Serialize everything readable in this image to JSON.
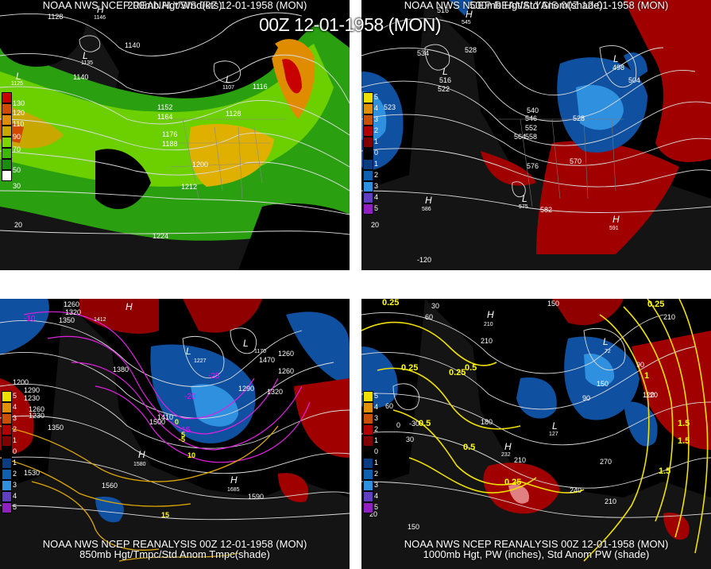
{
  "title": "00Z 12-01-1958 (MON)",
  "panels": [
    {
      "id": "p1",
      "line1": "NOAA NWS NCEP REANALYSIS 00Z 12-01-1958 (MON)",
      "line2": "200mb Hgt/Wnd(kts)",
      "legend": [
        "130",
        "120",
        "110",
        "90",
        "70",
        "50",
        "30"
      ],
      "legend_colors": [
        "#c80000",
        "#d04a00",
        "#e08c00",
        "#c8a800",
        "#7cd400",
        "#3cb800",
        "#1a8c10"
      ],
      "contour_labels": [
        "1128",
        "1140",
        "1140",
        "1116",
        "1152",
        "1164",
        "1176",
        "1188",
        "1128",
        "1200",
        "1212",
        "1224",
        "20"
      ],
      "pressure_labels": [
        "L",
        "1135",
        "L",
        "1107",
        "H",
        "1146",
        "L",
        "1125"
      ]
    },
    {
      "id": "p2",
      "line1": "NOAA NWS NCEP REANALYSIS 00Z 12-01-1958 (MON)",
      "line2": "500mb Hgt/Std Anom(shade)",
      "legend": [
        "5",
        "4",
        "3",
        "2",
        "1",
        "0",
        "1",
        "2",
        "3",
        "4",
        "5"
      ],
      "legend_colors": [
        "#f0e000",
        "#e09000",
        "#c85000",
        "#b00000",
        "#800000",
        "#000000",
        "#0c3c80",
        "#1060b0",
        "#3090e0",
        "#6040c0",
        "#9020c0"
      ],
      "contour_labels": [
        "516",
        "534",
        "528",
        "522",
        "516",
        "528",
        "523",
        "504",
        "498",
        "540",
        "546",
        "552",
        "558",
        "564",
        "570",
        "576",
        "582",
        "-120",
        "20"
      ],
      "pressure_labels": [
        "H",
        "545",
        "L",
        "L",
        "H",
        "586",
        "L",
        "575",
        "H",
        "591"
      ]
    },
    {
      "id": "p3",
      "line1": "NOAA NWS NCEP REANALYSIS 00Z 12-01-1958 (MON)",
      "line2": "850mb Hgt/Tmpc/Std Anom Tmpc(shade)",
      "legend": [
        "5",
        "4",
        "3",
        "2",
        "1",
        "0",
        "1",
        "2",
        "3",
        "4",
        "5"
      ],
      "contour_labels": [
        "1260",
        "1320",
        "1350",
        "1380",
        "1410",
        "1500",
        "1530",
        "1560",
        "1590",
        "1290",
        "1230",
        "1200",
        "1350",
        "1320",
        "1260",
        "1470",
        "1290",
        "1260",
        "1230",
        "1260"
      ],
      "temp_labels": [
        "-10",
        "-20",
        "-25",
        "-15",
        "-5",
        "0",
        "5",
        "10",
        "15"
      ],
      "pressure_labels": [
        "H",
        "1412",
        "L",
        "1227",
        "L",
        "1170",
        "H",
        "1580",
        "H",
        "1685"
      ]
    },
    {
      "id": "p4",
      "line1": "NOAA NWS NCEP REANALYSIS 00Z 12-01-1958 (MON)",
      "line2": "1000mb Hgt, PW (inches), Std Anom PW (shade)",
      "legend": [
        "5",
        "4",
        "3",
        "2",
        "1",
        "0",
        "1",
        "2",
        "3",
        "4",
        "5"
      ],
      "contour_labels": [
        "30",
        "60",
        "90",
        "120",
        "150",
        "180",
        "210",
        "240",
        "270",
        "210",
        "150",
        "0",
        "-30",
        "30",
        "60",
        "90",
        "120",
        "150",
        "210",
        "210",
        "20"
      ],
      "pw_labels": [
        "0.25",
        "0.5",
        "0.25",
        "0.25",
        "0.5",
        "1",
        "1.5",
        "1.5",
        "0.5",
        "0.25",
        "1.5",
        "0.25"
      ],
      "pressure_labels": [
        "H",
        "210",
        "L",
        "72",
        "H",
        "232",
        "L",
        "127"
      ]
    }
  ]
}
